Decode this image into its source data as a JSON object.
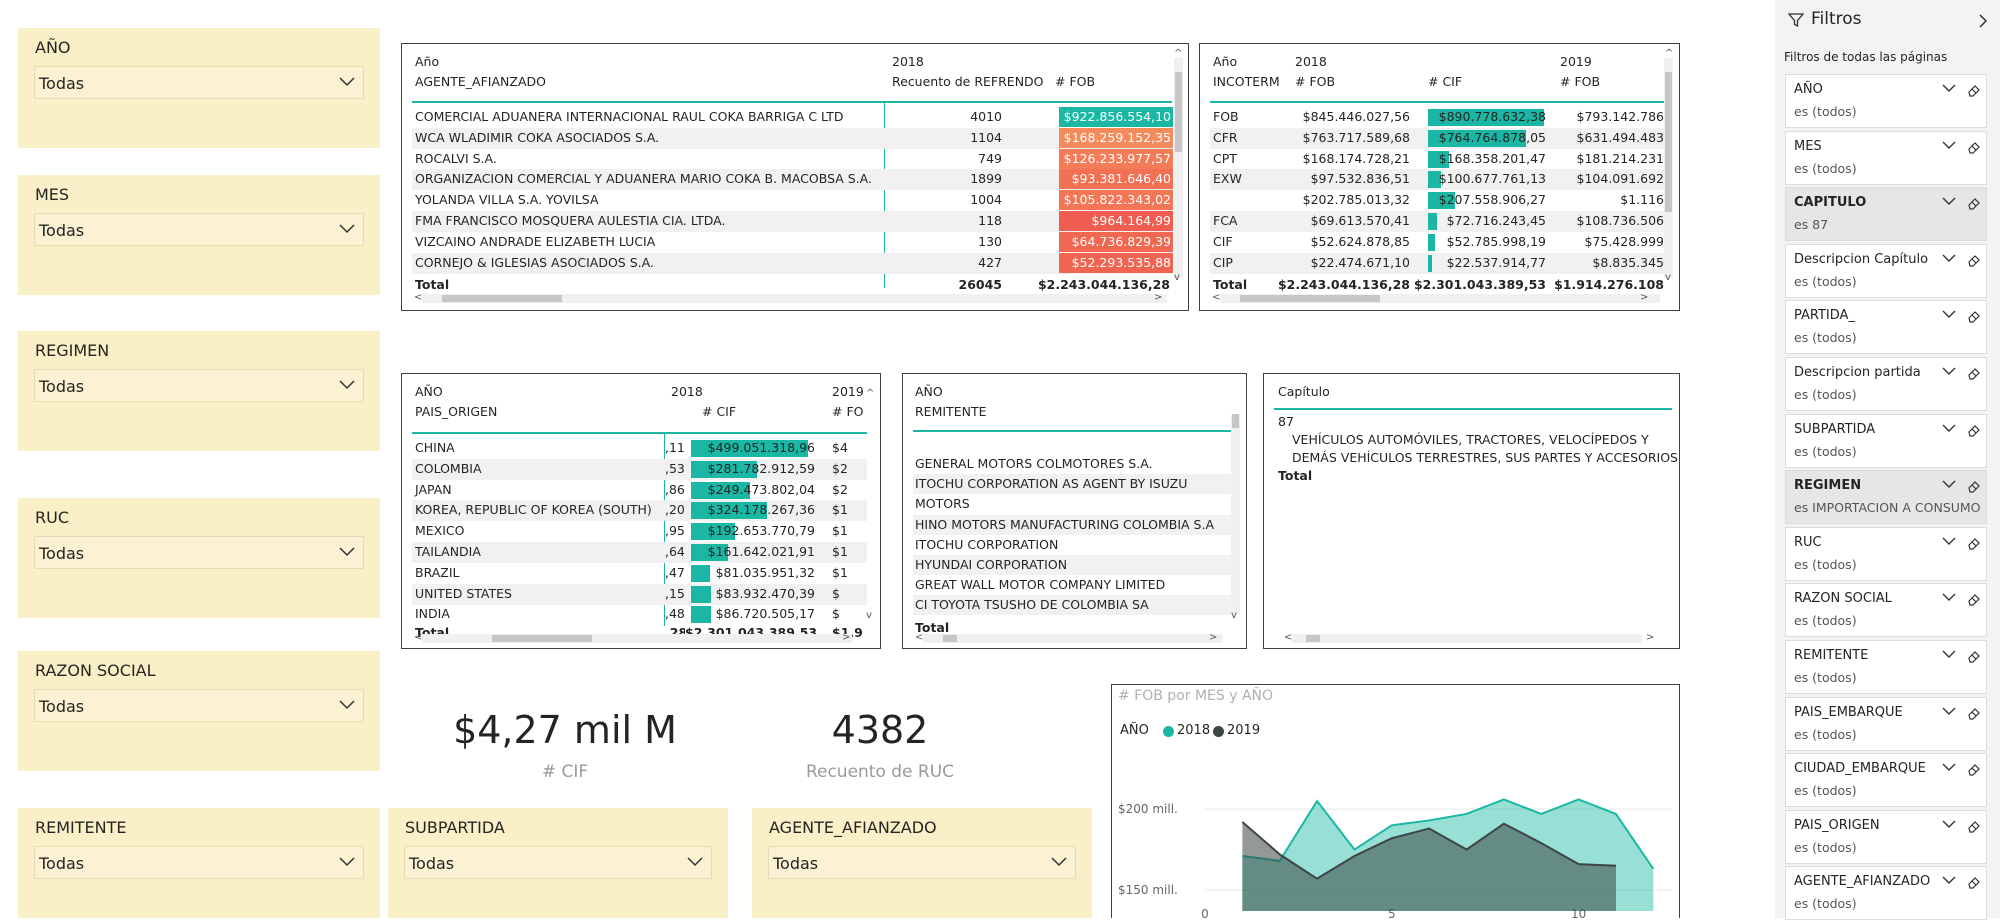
{
  "slicers": {
    "anio": {
      "title": "AÑO",
      "value": "Todas"
    },
    "mes": {
      "title": "MES",
      "value": "Todas"
    },
    "regimen": {
      "title": "REGIMEN",
      "value": "Todas"
    },
    "ruc": {
      "title": "RUC",
      "value": "Todas"
    },
    "razon": {
      "title": "RAZON SOCIAL",
      "value": "Todas"
    },
    "remitente": {
      "title": "REMITENTE",
      "value": "Todas"
    },
    "subpartida": {
      "title": "SUBPARTIDA",
      "value": "Todas"
    },
    "agente": {
      "title": "AGENTE_AFIANZADO",
      "value": "Todas"
    }
  },
  "agente_table": {
    "h_anio": "Año",
    "h_year": "2018",
    "h_row": "AGENTE_AFIANZADO",
    "h_c1": "Recuento de REFRENDO",
    "h_c2": "# FOB",
    "rows": [
      {
        "name": "COMERCIAL ADUANERA INTERNACIONAL RAUL COKA BARRIGA C LTD",
        "count": "4010",
        "fob": "$922.856.554,10",
        "color": "#1ab8a4"
      },
      {
        "name": "WCA WLADIMIR COKA ASOCIADOS S.A.",
        "count": "1104",
        "fob": "$168.259.152,35",
        "color": "#f58a5c"
      },
      {
        "name": "ROCALVI S.A.",
        "count": "749",
        "fob": "$126.233.977,57",
        "color": "#f47c58"
      },
      {
        "name": "ORGANIZACION COMERCIAL Y ADUANERA MARIO COKA B. MACOBSA S.A.",
        "count": "1899",
        "fob": "$93.381.646,40",
        "color": "#f27155"
      },
      {
        "name": "YOLANDA VILLA S.A. YOVILSA",
        "count": "1004",
        "fob": "$105.822.343,02",
        "color": "#f37656"
      },
      {
        "name": "FMA FRANCISCO MOSQUERA AULESTIA CIA. LTDA.",
        "count": "118",
        "fob": "$964.164,99",
        "color": "#ef5d50"
      },
      {
        "name": "VIZCAINO ANDRADE ELIZABETH LUCIA",
        "count": "130",
        "fob": "$64.736.829,39",
        "color": "#f06852"
      },
      {
        "name": "CORNEJO & IGLESIAS ASOCIADOS S.A.",
        "count": "427",
        "fob": "$52.293.535,88",
        "color": "#f06552"
      }
    ],
    "total_label": "Total",
    "total_count": "26045",
    "total_fob": "$2.243.044.136,28"
  },
  "incoterm_table": {
    "h_anio": "Año",
    "h_y1": "2018",
    "h_y2": "2019",
    "h_row": "INCOTERM",
    "h_fob": "# FOB",
    "h_cif": "# CIF",
    "h_fob2": "# FOB",
    "rows": [
      {
        "name": "FOB",
        "fob": "$845.446.027,56",
        "cif": "$890.778.632,38",
        "fob2": "$793.142.786",
        "bar": 0.98
      },
      {
        "name": "CFR",
        "fob": "$763.717.589,68",
        "cif": "$764.764.878,05",
        "fob2": "$631.494.483",
        "bar": 0.83
      },
      {
        "name": "CPT",
        "fob": "$168.174.728,21",
        "cif": "$168.358.201,47",
        "fob2": "$181.214.231",
        "bar": 0.18
      },
      {
        "name": "EXW",
        "fob": "$97.532.836,51",
        "cif": "$100.677.761,13",
        "fob2": "$104.091.692",
        "bar": 0.11
      },
      {
        "name": "",
        "fob": "$202.785.013,32",
        "cif": "$207.558.906,27",
        "fob2": "$1.116",
        "bar": 0.23
      },
      {
        "name": "FCA",
        "fob": "$69.613.570,41",
        "cif": "$72.716.243,45",
        "fob2": "$108.736.506",
        "bar": 0.08
      },
      {
        "name": "CIF",
        "fob": "$52.624.878,85",
        "cif": "$52.785.998,19",
        "fob2": "$75.428.999",
        "bar": 0.06
      },
      {
        "name": "CIP",
        "fob": "$22.474.671,10",
        "cif": "$22.537.914,77",
        "fob2": "$8.835.345",
        "bar": 0.03
      }
    ],
    "total_label": "Total",
    "total_fob": "$2.243.044.136,28",
    "total_cif": "$2.301.043.389,53",
    "total_fob2": "$1.914.276.108"
  },
  "pais_table": {
    "h_anio": "AÑO",
    "h_y1": "2018",
    "h_y2": "2019",
    "h_row": "PAIS_ORIGEN",
    "h_cif": "# CIF",
    "h_fob": "# FO",
    "rows": [
      {
        "name": "CHINA",
        "pre": ",11",
        "cif": "$499.051.318,96",
        "post": "$4",
        "bar": 1.0
      },
      {
        "name": "COLOMBIA",
        "pre": ",53",
        "cif": "$281.782.912,59",
        "post": "$2",
        "bar": 0.56
      },
      {
        "name": "JAPAN",
        "pre": ",86",
        "cif": "$249.473.802,04",
        "post": "$2",
        "bar": 0.5
      },
      {
        "name": "KOREA, REPUBLIC OF KOREA (SOUTH)",
        "pre": ",20",
        "cif": "$324.178.267,36",
        "post": "$1",
        "bar": 0.65
      },
      {
        "name": "MEXICO",
        "pre": ",95",
        "cif": "$192.653.770,79",
        "post": "$1",
        "bar": 0.38
      },
      {
        "name": "TAILANDIA",
        "pre": ",64",
        "cif": "$161.642.021,91",
        "post": "$1",
        "bar": 0.32
      },
      {
        "name": "BRAZIL",
        "pre": ",47",
        "cif": "$81.035.951,32",
        "post": "$1",
        "bar": 0.16
      },
      {
        "name": "UNITED STATES",
        "pre": ",15",
        "cif": "$83.932.470,39",
        "post": "$",
        "bar": 0.17
      },
      {
        "name": "INDIA",
        "pre": ",48",
        "cif": "$86.720.505,17",
        "post": "$",
        "bar": 0.17
      }
    ],
    "total_label": "Total",
    "total_pre": ",28",
    "total_cif": "$2.301.043.389,53",
    "total_post": "$1.9"
  },
  "remitente_table": {
    "h_anio": "AÑO",
    "h_row": "REMITENTE",
    "rows": [
      "GENERAL MOTORS COLMOTORES S.A.",
      "ITOCHU CORPORATION AS AGENT BY ISUZU",
      "MOTORS",
      "HINO MOTORS MANUFACTURING COLOMBIA S.A",
      "ITOCHU CORPORATION",
      "HYUNDAI CORPORATION",
      "GREAT WALL MOTOR COMPANY LIMITED",
      "CI TOYOTA TSUSHO DE COLOMBIA SA"
    ],
    "total_label": "Total"
  },
  "capitulo_table": {
    "h_row": "Capítulo",
    "code": "87",
    "desc1": "VEHÍCULOS AUTOMÓVILES, TRACTORES, VELOCÍPEDOS Y",
    "desc2": "DEMÁS VEHÍCULOS TERRESTRES, SUS PARTES Y ACCESORIOS",
    "total_label": "Total"
  },
  "cards": {
    "cif": {
      "value": "$4,27 mil M",
      "label": "# CIF"
    },
    "ruc": {
      "value": "4382",
      "label": "Recuento de RUC"
    }
  },
  "chart_data": {
    "type": "area",
    "title": "# FOB por MES y AÑO",
    "legend_title": "AÑO",
    "legend_position": "top-left",
    "y_ticks": [
      "$200 mill.",
      "$150 mill."
    ],
    "y_tick_values": [
      200,
      150
    ],
    "x_ticks": [
      "0",
      "5",
      "10"
    ],
    "x_tick_values": [
      0,
      5,
      10
    ],
    "xlim": [
      0,
      12.5
    ],
    "ylim": [
      137,
      218
    ],
    "series": [
      {
        "name": "2018",
        "color": "#1ab8a4",
        "x": [
          1,
          2,
          3,
          4,
          5,
          6,
          7,
          8,
          9,
          10,
          11,
          12
        ],
        "y": [
          171,
          168,
          205,
          175,
          190,
          193,
          197,
          206,
          197,
          206,
          197,
          163
        ]
      },
      {
        "name": "2019",
        "color": "#3d4544",
        "x": [
          1,
          2,
          3,
          4,
          5,
          6,
          7,
          8,
          9,
          10,
          11
        ],
        "y": [
          192,
          172,
          157,
          171,
          182,
          188,
          175,
          191,
          179,
          166,
          165
        ]
      }
    ]
  },
  "filters_pane": {
    "title": "Filtros",
    "section": "Filtros de todas las páginas",
    "cards": [
      {
        "name": "AÑO",
        "value": "es (todos)"
      },
      {
        "name": "MES",
        "value": "es (todos)"
      },
      {
        "name": "CAPITULO",
        "value": "es 87",
        "active": true
      },
      {
        "name": "Descripcion Capítulo",
        "value": "es (todos)"
      },
      {
        "name": "PARTIDA_",
        "value": "es (todos)"
      },
      {
        "name": "Descripcion partida",
        "value": "es (todos)"
      },
      {
        "name": "SUBPARTIDA",
        "value": "es (todos)"
      },
      {
        "name": "REGIMEN",
        "value": "es IMPORTACION A CONSUMO",
        "active": true
      },
      {
        "name": "RUC",
        "value": "es (todos)"
      },
      {
        "name": "RAZON SOCIAL",
        "value": "es (todos)"
      },
      {
        "name": "REMITENTE",
        "value": "es (todos)"
      },
      {
        "name": "PAIS_EMBARQUE",
        "value": "es (todos)"
      },
      {
        "name": "CIUDAD_EMBARQUE",
        "value": "es (todos)"
      },
      {
        "name": "PAIS_ORIGEN",
        "value": "es (todos)"
      },
      {
        "name": "AGENTE_AFIANZADO",
        "value": "es (todos)"
      }
    ]
  }
}
